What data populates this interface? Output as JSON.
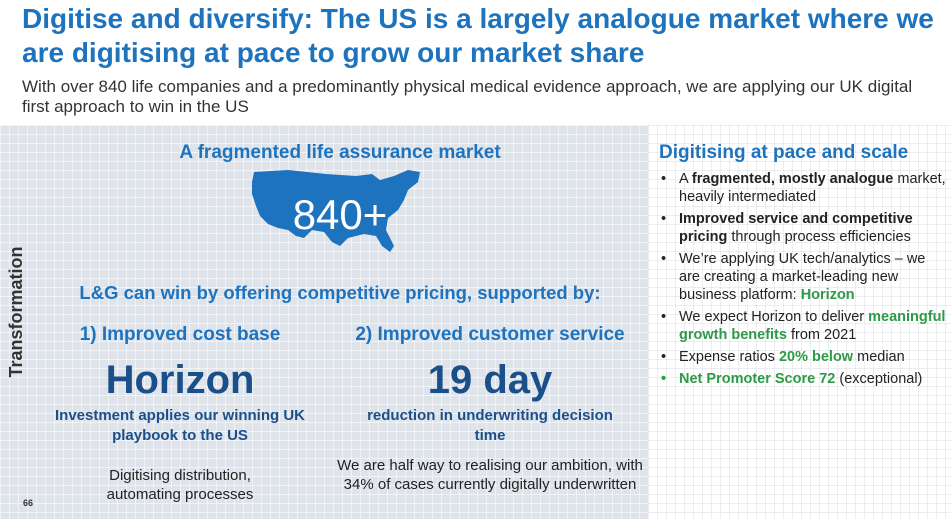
{
  "header": {
    "title": "Digitise and diversify: The US is a largely analogue market where we are digitising at pace to grow our market share",
    "subtitle": "With over 840 life companies and a predominantly physical medical evidence approach, we are applying our UK digital first approach to win in the US"
  },
  "left": {
    "side_label": "Transformation",
    "frag_title": "A fragmented life assurance market",
    "map_number": "840+",
    "win_title": "L&G can win by offering competitive pricing, supported by:",
    "col1": {
      "heading": "1) Improved cost base",
      "big": "Horizon",
      "sub": "Investment applies our winning UK playbook to the US",
      "body": "Digitising distribution, automating processes"
    },
    "col2": {
      "heading": "2) Improved customer service",
      "big": "19 day",
      "sub": "reduction in underwriting decision time",
      "body": "We are half way to realising our ambition, with 34% of cases currently digitally underwritten"
    },
    "page_number": "66"
  },
  "right": {
    "title": "Digitising at pace and scale",
    "bullets": [
      {
        "bullet": "•",
        "parts": [
          {
            "t": "A "
          },
          {
            "t": "fragmented, mostly analogue",
            "s": "bold"
          },
          {
            "t": " market, heavily intermediated"
          }
        ]
      },
      {
        "bullet": "•",
        "parts": [
          {
            "t": "Improved service and competitive pricing",
            "s": "bold"
          },
          {
            "t": " through process efficiencies"
          }
        ]
      },
      {
        "bullet": "•",
        "parts": [
          {
            "t": "We’re applying UK tech/analytics – we are creating a market-leading new business platform: "
          },
          {
            "t": "Horizon",
            "s": "green"
          }
        ]
      },
      {
        "bullet": "•",
        "parts": [
          {
            "t": "We expect Horizon to deliver "
          },
          {
            "t": "meaningful growth benefits",
            "s": "green"
          },
          {
            "t": " from 2021"
          }
        ]
      },
      {
        "bullet": "•",
        "parts": [
          {
            "t": "Expense ratios "
          },
          {
            "t": "20% below",
            "s": "green"
          },
          {
            "t": " median"
          }
        ]
      },
      {
        "bullet": "•",
        "green_bullet": true,
        "parts": [
          {
            "t": "Net Promoter Score 72",
            "s": "green"
          },
          {
            "t": " (exceptional)"
          }
        ]
      }
    ]
  },
  "colors": {
    "accent_blue": "#1e73be",
    "dark_blue": "#1b4f8a",
    "green": "#2e9a47"
  }
}
